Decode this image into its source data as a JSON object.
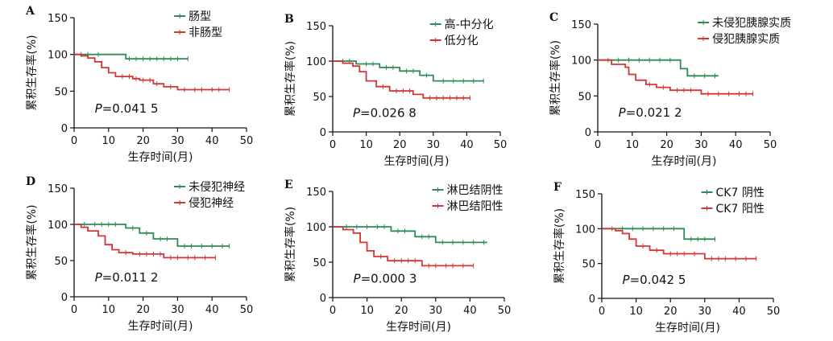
{
  "colors": {
    "series1": "#2e8b57",
    "series2": "#d43535",
    "axis": "#111111"
  },
  "chart_data": [
    {
      "type": "line",
      "panel": "A",
      "xlabel": "生存时间(月)",
      "ylabel": "累积生存率(%)",
      "xlim": [
        0,
        50
      ],
      "ylim": [
        0,
        150
      ],
      "xticks": [
        "0",
        "10",
        "20",
        "30",
        "40",
        "50"
      ],
      "yticks": [
        "0",
        "50",
        "100",
        "150"
      ],
      "legend": "top-right",
      "annotation": "P=0.041 5",
      "series": [
        {
          "name": "肠型",
          "color": "#2e8b57",
          "x": [
            0,
            15,
            15,
            33
          ],
          "y": [
            100,
            100,
            94,
            94
          ],
          "censors_x": [
            2,
            4,
            7,
            16,
            18,
            20,
            22,
            24,
            26,
            28,
            30,
            33
          ]
        },
        {
          "name": "非肠型",
          "color": "#d43535",
          "x": [
            0,
            2,
            2,
            4,
            4,
            6,
            6,
            8,
            8,
            10,
            10,
            12,
            12,
            17,
            17,
            19,
            19,
            23,
            23,
            26,
            26,
            30,
            30,
            45
          ],
          "y": [
            100,
            100,
            98,
            98,
            95,
            95,
            90,
            90,
            82,
            82,
            75,
            75,
            70,
            70,
            67,
            67,
            65,
            65,
            60,
            60,
            56,
            56,
            52,
            52
          ],
          "censors_x": [
            14,
            16,
            18,
            20,
            22,
            24,
            28,
            32,
            35,
            37,
            40,
            42,
            45
          ]
        }
      ]
    },
    {
      "type": "line",
      "panel": "B",
      "xlabel": "生存时间(月)",
      "ylabel": "累积生存率(%)",
      "xlim": [
        0,
        50
      ],
      "ylim": [
        0,
        150
      ],
      "xticks": [
        "0",
        "10",
        "20",
        "30",
        "40",
        "50"
      ],
      "yticks": [
        "0",
        "50",
        "100",
        "150"
      ],
      "legend": "top-right",
      "annotation": "P=0.026 8",
      "series": [
        {
          "name": "高-中分化",
          "color": "#2e8b57",
          "x": [
            0,
            7,
            7,
            14,
            14,
            20,
            20,
            26,
            26,
            30,
            30,
            45
          ],
          "y": [
            100,
            100,
            96,
            96,
            91,
            91,
            86,
            86,
            80,
            80,
            72,
            72
          ],
          "censors_x": [
            3,
            5,
            10,
            12,
            16,
            18,
            22,
            24,
            28,
            33,
            36,
            39,
            42,
            45
          ]
        },
        {
          "name": "低分化",
          "color": "#d43535",
          "x": [
            0,
            3,
            3,
            6,
            6,
            8,
            8,
            10,
            10,
            13,
            13,
            17,
            17,
            24,
            24,
            27,
            27,
            41
          ],
          "y": [
            100,
            100,
            97,
            97,
            93,
            93,
            85,
            85,
            72,
            72,
            64,
            64,
            58,
            58,
            53,
            53,
            48,
            48
          ],
          "censors_x": [
            15,
            19,
            21,
            23,
            29,
            31,
            33,
            35,
            37,
            39,
            41
          ]
        }
      ]
    },
    {
      "type": "line",
      "panel": "C",
      "xlabel": "生存时间(月)",
      "ylabel": "累积生存率(%)",
      "xlim": [
        0,
        50
      ],
      "ylim": [
        0,
        150
      ],
      "xticks": [
        "0",
        "10",
        "20",
        "30",
        "40",
        "50"
      ],
      "yticks": [
        "0",
        "50",
        "100",
        "150"
      ],
      "legend": "top-right",
      "annotation": "P=0.021 2",
      "series": [
        {
          "name": "未侵犯胰腺实质",
          "color": "#2e8b57",
          "x": [
            0,
            24,
            24,
            26,
            26,
            35
          ],
          "y": [
            100,
            100,
            88,
            88,
            78,
            78
          ],
          "censors_x": [
            3,
            6,
            9,
            12,
            15,
            18,
            21,
            28,
            31,
            34
          ]
        },
        {
          "name": "侵犯胰腺实质",
          "color": "#d43535",
          "x": [
            0,
            4,
            4,
            8,
            8,
            9,
            9,
            11,
            11,
            14,
            14,
            17,
            17,
            21,
            21,
            30,
            30,
            45
          ],
          "y": [
            100,
            100,
            94,
            94,
            90,
            90,
            80,
            80,
            72,
            72,
            66,
            66,
            62,
            62,
            58,
            58,
            53,
            53
          ],
          "censors_x": [
            15,
            19,
            23,
            25,
            27,
            32,
            35,
            38,
            41,
            43,
            45
          ]
        }
      ]
    },
    {
      "type": "line",
      "panel": "D",
      "xlabel": "生存时间(月)",
      "ylabel": "累积生存率(%)",
      "xlim": [
        0,
        50
      ],
      "ylim": [
        0,
        150
      ],
      "xticks": [
        "0",
        "10",
        "20",
        "30",
        "40",
        "50"
      ],
      "yticks": [
        "0",
        "50",
        "100",
        "150"
      ],
      "legend": "top-right",
      "annotation": "P=0.011 2",
      "series": [
        {
          "name": "未侵犯神经",
          "color": "#2e8b57",
          "x": [
            0,
            15,
            15,
            19,
            19,
            23,
            23,
            30,
            30,
            45
          ],
          "y": [
            100,
            100,
            95,
            95,
            88,
            88,
            80,
            80,
            70,
            70
          ],
          "censors_x": [
            3,
            6,
            8,
            10,
            12,
            17,
            21,
            25,
            27,
            32,
            34,
            37,
            40,
            43,
            45
          ]
        },
        {
          "name": "侵犯神经",
          "color": "#d43535",
          "x": [
            0,
            2,
            2,
            4,
            4,
            7,
            7,
            9,
            9,
            11,
            11,
            13,
            13,
            17,
            17,
            26,
            26,
            41
          ],
          "y": [
            100,
            100,
            96,
            96,
            91,
            91,
            84,
            84,
            72,
            72,
            65,
            65,
            61,
            61,
            59,
            59,
            54,
            54
          ],
          "censors_x": [
            15,
            19,
            21,
            23,
            25,
            28,
            30,
            33,
            35,
            38,
            41
          ]
        }
      ]
    },
    {
      "type": "line",
      "panel": "E",
      "xlabel": "生存时间(月)",
      "ylabel": "累积生存率(%)",
      "xlim": [
        0,
        50
      ],
      "ylim": [
        0,
        150
      ],
      "xticks": [
        "0",
        "10",
        "20",
        "30",
        "40",
        "50"
      ],
      "yticks": [
        "0",
        "50",
        "100",
        "150"
      ],
      "legend": "top-right",
      "annotation": "P=0.000 3",
      "series": [
        {
          "name": "淋巴结阴性",
          "color": "#2e8b57",
          "x": [
            0,
            17,
            17,
            24,
            24,
            30,
            30,
            45
          ],
          "y": [
            100,
            100,
            94,
            94,
            86,
            86,
            78,
            78
          ],
          "censors_x": [
            4,
            7,
            10,
            13,
            15,
            19,
            21,
            26,
            28,
            32,
            35,
            38,
            41,
            44
          ]
        },
        {
          "name": "淋巴结阳性",
          "color": "#d43535",
          "x": [
            0,
            3,
            3,
            6,
            6,
            8,
            8,
            10,
            10,
            12,
            12,
            16,
            16,
            26,
            26,
            41
          ],
          "y": [
            100,
            100,
            96,
            96,
            91,
            91,
            78,
            78,
            66,
            66,
            58,
            58,
            52,
            52,
            45,
            45
          ],
          "censors_x": [
            14,
            18,
            20,
            22,
            24,
            28,
            30,
            33,
            35,
            38,
            41
          ]
        }
      ]
    },
    {
      "type": "line",
      "panel": "F",
      "xlabel": "生存时间(月)",
      "ylabel": "累积生存率(%)",
      "xlim": [
        0,
        50
      ],
      "ylim": [
        0,
        150
      ],
      "xticks": [
        "0",
        "10",
        "20",
        "30",
        "40",
        "50"
      ],
      "yticks": [
        "0",
        "50",
        "100",
        "150"
      ],
      "legend": "top-right",
      "annotation": "P=0.042 5",
      "series": [
        {
          "name": "CK7 阴性",
          "color": "#2e8b57",
          "x": [
            0,
            24,
            24,
            33
          ],
          "y": [
            100,
            100,
            85,
            85
          ],
          "censors_x": [
            3,
            6,
            9,
            12,
            15,
            18,
            21,
            26,
            28,
            30,
            33
          ]
        },
        {
          "name": "CK7 阳性",
          "color": "#d43535",
          "x": [
            0,
            4,
            4,
            6,
            6,
            8,
            8,
            10,
            10,
            14,
            14,
            18,
            18,
            30,
            30,
            45
          ],
          "y": [
            100,
            100,
            97,
            97,
            93,
            93,
            85,
            85,
            75,
            75,
            69,
            69,
            64,
            64,
            57,
            57
          ],
          "censors_x": [
            12,
            16,
            20,
            22,
            24,
            27,
            32,
            34,
            36,
            39,
            42,
            45
          ]
        }
      ]
    }
  ]
}
